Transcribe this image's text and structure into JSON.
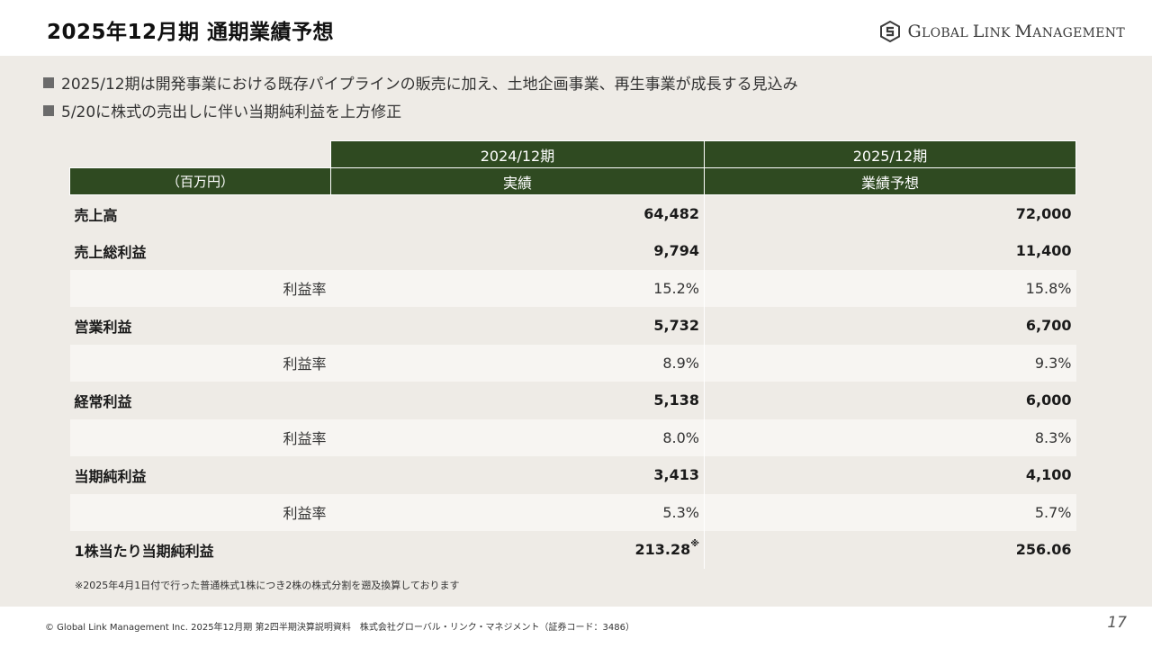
{
  "slide": {
    "title": "2025年12月期 通期業績予想",
    "page_number": "17"
  },
  "logo": {
    "text": "Global Link Management",
    "icon": "company-logo-icon"
  },
  "bullets": [
    "2025/12期は開発事業における既存パイプラインの販売に加え、土地企画事業、再生事業が成長する見込み",
    "5/20に株式の売出しに伴い当期純利益を上方修正"
  ],
  "table": {
    "unit": "（百万円）",
    "columns": [
      {
        "period": "2024/12期",
        "type": "実績"
      },
      {
        "period": "2025/12期",
        "type": "業績予想"
      }
    ],
    "rows": [
      {
        "label": "売上高",
        "kind": "main",
        "v2024": "64,482",
        "v2025": "72,000"
      },
      {
        "label": "売上総利益",
        "kind": "main",
        "v2024": "9,794",
        "v2025": "11,400"
      },
      {
        "label": "利益率",
        "kind": "sub",
        "v2024": "15.2%",
        "v2025": "15.8%"
      },
      {
        "label": "営業利益",
        "kind": "main",
        "v2024": "5,732",
        "v2025": "6,700"
      },
      {
        "label": "利益率",
        "kind": "sub",
        "v2024": "8.9%",
        "v2025": "9.3%"
      },
      {
        "label": "経常利益",
        "kind": "main",
        "v2024": "5,138",
        "v2025": "6,000"
      },
      {
        "label": "利益率",
        "kind": "sub",
        "v2024": "8.0%",
        "v2025": "8.3%"
      },
      {
        "label": "当期純利益",
        "kind": "main",
        "v2024": "3,413",
        "v2025": "4,100"
      },
      {
        "label": "利益率",
        "kind": "sub",
        "v2024": "5.3%",
        "v2025": "5.7%"
      },
      {
        "label": "1株当たり当期純利益",
        "kind": "main",
        "v2024": "213.28",
        "v2024_mark": "※",
        "v2025": "256.06"
      }
    ]
  },
  "footnote": "※2025年4月1日付で行った普通株式1株につき2株の株式分割を遡及換算しております",
  "footer": "© Global Link Management Inc. 2025年12月期 第2四半期決算説明資料　株式会社グローバル・リンク・マネジメント（証券コード：3486）",
  "colors": {
    "header_green": "#2f4a21",
    "background_beige": "#eeebe6",
    "sub_row": "#f7f5f2"
  }
}
